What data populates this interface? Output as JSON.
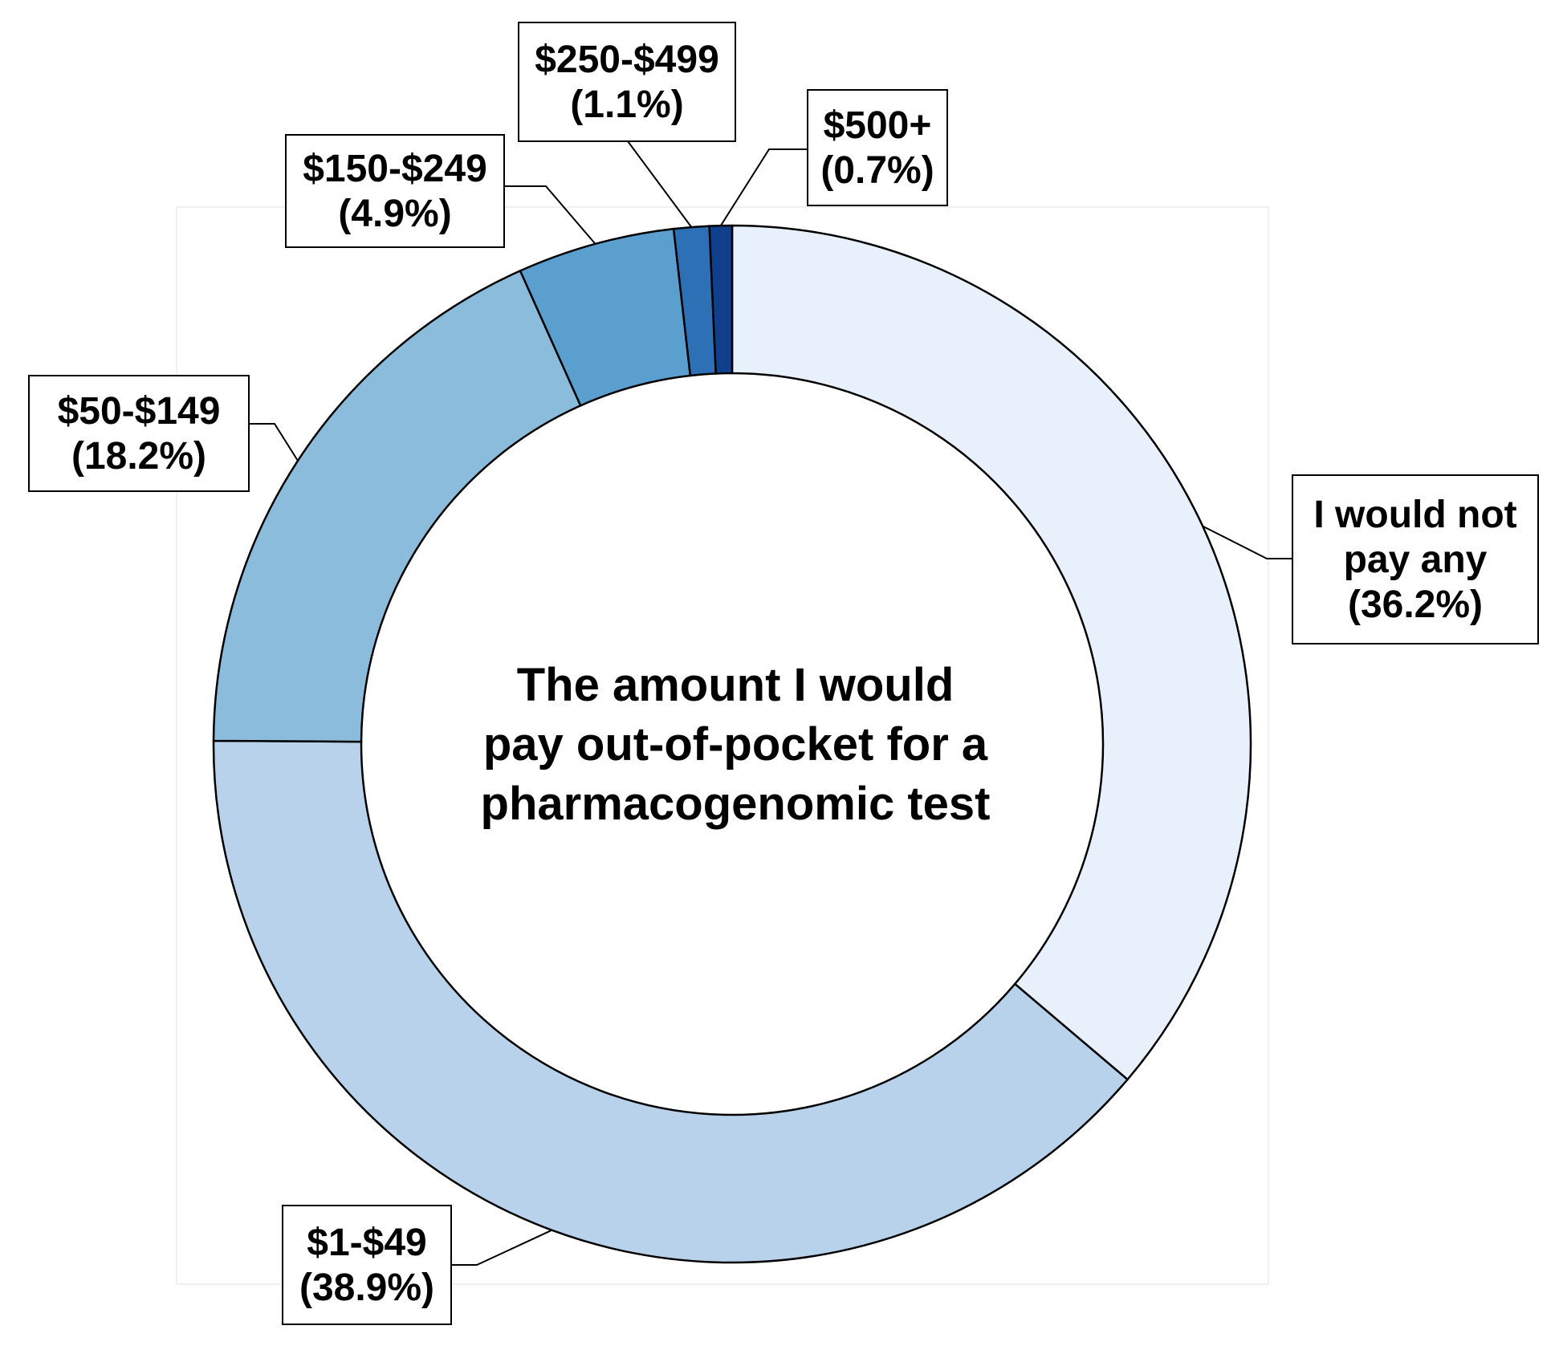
{
  "chart_data": {
    "type": "pie",
    "subtype": "donut",
    "center_label": [
      "The amount I would",
      "pay out-of-pocket for a",
      "pharmacogenomic test"
    ],
    "categories": [
      "I would not pay any",
      "$1-$49",
      "$50-$149",
      "$150-$249",
      "$250-$499",
      "$500+"
    ],
    "values": [
      36.2,
      38.9,
      18.2,
      4.9,
      1.1,
      0.7
    ],
    "unit": "%",
    "labels": [
      {
        "lines": [
          "I would not",
          "pay any",
          "(36.2%)"
        ]
      },
      {
        "lines": [
          "$1-$49",
          "(38.9%)"
        ]
      },
      {
        "lines": [
          "$50-$149",
          "(18.2%)"
        ]
      },
      {
        "lines": [
          "$150-$249",
          "(4.9%)"
        ]
      },
      {
        "lines": [
          "$250-$499",
          "(1.1%)"
        ]
      },
      {
        "lines": [
          "$500+",
          "(0.7%)"
        ]
      }
    ],
    "colors": [
      "#e7f0fb",
      "#b9d2eb",
      "#8cbcdb",
      "#5b9fce",
      "#2e70b6",
      "#103f8b"
    ],
    "direction": "clockwise from top",
    "legend": "none"
  }
}
